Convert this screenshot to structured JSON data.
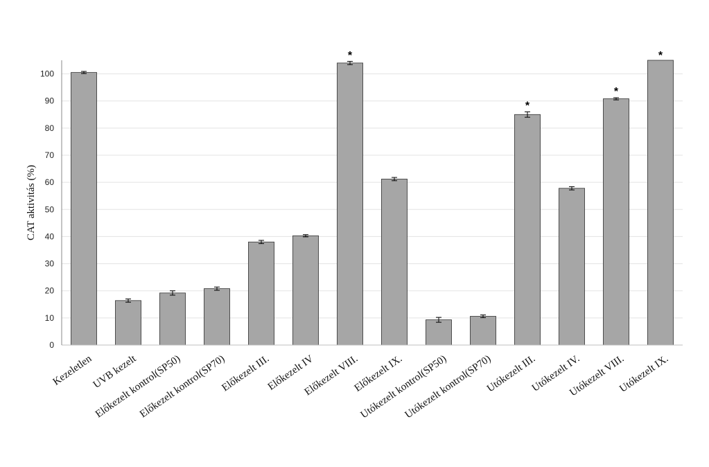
{
  "chart_data": {
    "type": "bar",
    "ylabel": "CAT aktivitás (%)",
    "xlabel": "",
    "ylim": [
      0,
      105
    ],
    "yticks": [
      0,
      10,
      20,
      30,
      40,
      50,
      60,
      70,
      80,
      90,
      100
    ],
    "grid": true,
    "bar_color": "#a6a6a6",
    "categories": [
      "Kezeletlen",
      "UVB kezelt",
      "Előkezelt kontrol(SP50)",
      "Előkezelt kontrol(SP70)",
      "Előkezelt III.",
      "Előkezelt IV",
      "Előkezelt VIII.",
      "Előkezelt IX.",
      "Utókezelt kontrol(SP50)",
      "Utókezelt kontrol(SP70)",
      "Utókezelt III.",
      "Utókezelt IV.",
      "Utókezelt VIII.",
      "Utókezelt IX."
    ],
    "values": [
      100.5,
      16.4,
      19.2,
      20.8,
      38.0,
      40.3,
      104.0,
      61.2,
      9.3,
      10.6,
      85.0,
      57.8,
      90.8,
      105
    ],
    "errors": [
      0.4,
      0.6,
      0.8,
      0.6,
      0.6,
      0.4,
      0.6,
      0.6,
      0.9,
      0.5,
      1.0,
      0.6,
      0.4,
      0
    ],
    "significance": [
      "",
      "",
      "",
      "",
      "",
      "",
      "*",
      "",
      "",
      "",
      "*",
      "",
      "*",
      "*"
    ]
  }
}
